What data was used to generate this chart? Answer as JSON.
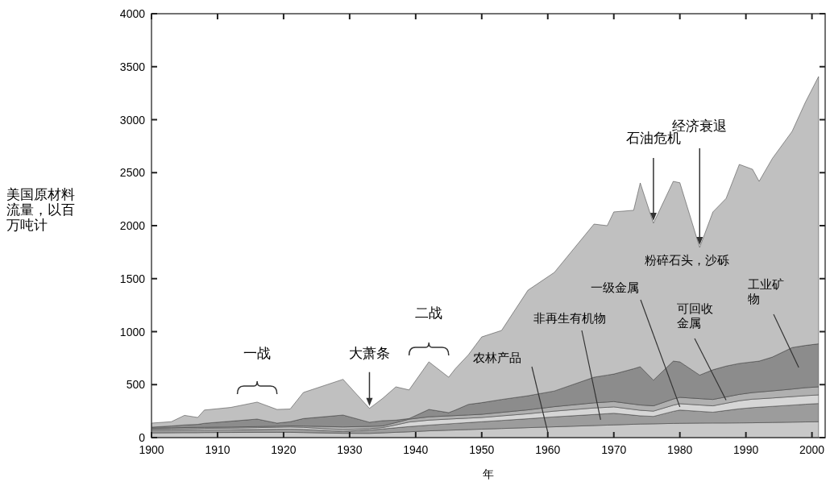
{
  "chart_data": {
    "type": "area",
    "stacked": true,
    "xlabel": "年",
    "ylabel": "美国原材料流量，以百万吨计",
    "xlim": [
      1900,
      2002
    ],
    "ylim": [
      0,
      4000
    ],
    "xticks": [
      1900,
      1910,
      1920,
      1930,
      1940,
      1950,
      1960,
      1970,
      1980,
      1990,
      2000
    ],
    "yticks": [
      0,
      500,
      1000,
      1500,
      2000,
      2500,
      3000,
      3500,
      4000
    ],
    "x": [
      1900,
      1903,
      1905,
      1907,
      1908,
      1912,
      1916,
      1919,
      1921,
      1923,
      1929,
      1933,
      1935,
      1937,
      1939,
      1942,
      1945,
      1946,
      1948,
      1950,
      1953,
      1957,
      1961,
      1967,
      1969,
      1970,
      1973,
      1974,
      1976,
      1979,
      1980,
      1983,
      1985,
      1987,
      1989,
      1991,
      1992,
      1994,
      1997,
      1999,
      2001
    ],
    "series": [
      {
        "name": "农林产品",
        "color": "#c8c8c8",
        "values": [
          45,
          46,
          47,
          47,
          48,
          49,
          50,
          50,
          50,
          48,
          41,
          40,
          45,
          50,
          55,
          64,
          70,
          72,
          76,
          80,
          86,
          94,
          102,
          114,
          118,
          120,
          126,
          128,
          130,
          134,
          135,
          137,
          138,
          138,
          139,
          140,
          141,
          143,
          146,
          148,
          150
        ]
      },
      {
        "name": "非再生有机物",
        "color": "#9c9c9c",
        "values": [
          25,
          25,
          25,
          26,
          25,
          26,
          27,
          29,
          30,
          30,
          17,
          32,
          37,
          43,
          49,
          54,
          60,
          62,
          66,
          70,
          76,
          84,
          94,
          104,
          108,
          110,
          86,
          78,
          70,
          114,
          125,
          111,
          102,
          118,
          133,
          143,
          146,
          152,
          161,
          167,
          172
        ]
      },
      {
        "name": "一级金属",
        "color": "#d6d6d6",
        "values": [
          10,
          12,
          13,
          13,
          14,
          15,
          17,
          19,
          20,
          19,
          15,
          13,
          13,
          27,
          43,
          47,
          45,
          44,
          42,
          40,
          43,
          47,
          54,
          62,
          60,
          60,
          54,
          52,
          50,
          58,
          60,
          60,
          60,
          68,
          76,
          80,
          79,
          79,
          80,
          81,
          81
        ]
      },
      {
        "name": "可回收金属",
        "color": "#b0b0b0",
        "values": [
          10,
          10,
          10,
          10,
          10,
          10,
          10,
          10,
          10,
          12,
          28,
          21,
          15,
          22,
          27,
          31,
          30,
          30,
          30,
          30,
          33,
          37,
          42,
          48,
          50,
          50,
          50,
          50,
          50,
          58,
          60,
          60,
          60,
          60,
          60,
          62,
          64,
          67,
          71,
          75,
          76
        ]
      },
      {
        "name": "工业矿物",
        "color": "#8c8c8c",
        "values": [
          9,
          17,
          25,
          29,
          38,
          55,
          71,
          29,
          40,
          71,
          112,
          39,
          50,
          23,
          6,
          70,
          31,
          52,
          100,
          110,
          122,
          133,
          148,
          242,
          254,
          260,
          334,
          361,
          242,
          358,
          335,
          222,
          280,
          291,
          292,
          290,
          292,
          319,
          392,
          399,
          406
        ]
      },
      {
        "name": "粉碎石头，沙砾",
        "color": "#c0c0c0",
        "values": [
          38,
          40,
          90,
          65,
          125,
          130,
          160,
          129,
          120,
          246,
          337,
          131,
          210,
          314,
          270,
          449,
          334,
          390,
          469,
          620,
          651,
          996,
          1119,
          1445,
          1410,
          1530,
          1495,
          1734,
          1481,
          1696,
          1690,
          1205,
          1489,
          1582,
          1878,
          1817,
          1696,
          1874,
          2040,
          2294,
          2522
        ]
      }
    ],
    "annotations": [
      {
        "text": "一战",
        "x": 1916,
        "y": 335
      },
      {
        "text": "大萧条",
        "x": 1933,
        "y": 276
      },
      {
        "text": "二战",
        "x": 1942,
        "y": 715
      },
      {
        "text": "石油危机",
        "x": 1976,
        "y": 2023
      },
      {
        "text": "经济衰退",
        "x": 1983,
        "y": 1795
      }
    ]
  }
}
